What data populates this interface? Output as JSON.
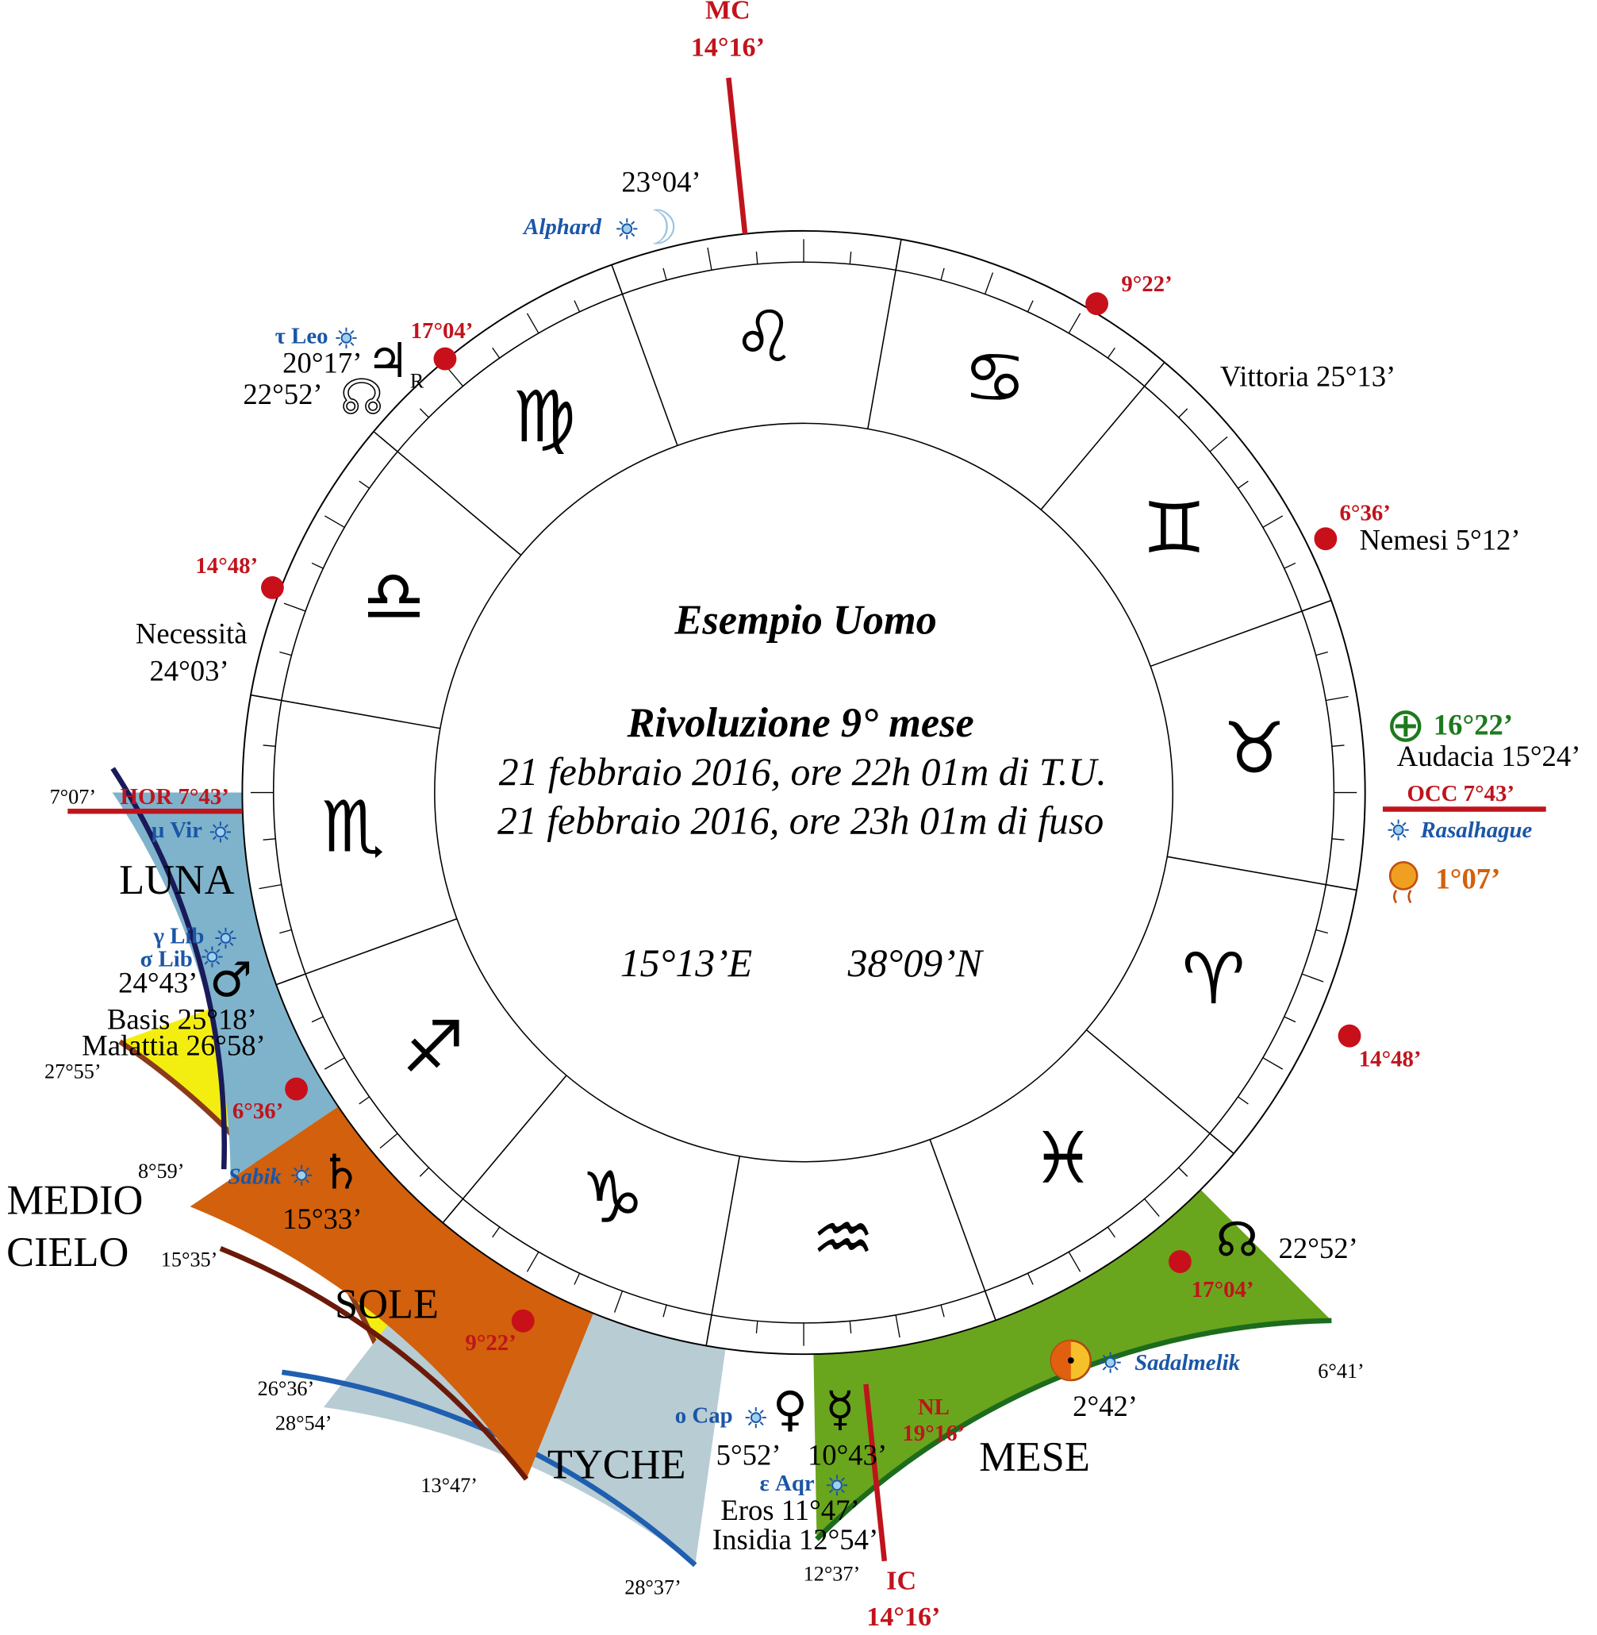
{
  "title": "Esempio Uomo",
  "subtitle": "Rivoluzione 9° mese",
  "lines": [
    "21 febbraio 2016, ore 22h 01m di T.U.",
    "21 febbraio 2016, ore 23h 01m di fuso"
  ],
  "coordinates": [
    "15°13’E",
    "38°09’N"
  ],
  "signs": [
    "♌",
    "♋",
    "♊",
    "♉",
    "♈",
    "♓",
    "♒",
    "♑",
    "♐",
    "♏",
    "♎",
    "♍"
  ],
  "glyphs": [
    "☽",
    "♃",
    "☊",
    "♂",
    "♄",
    "♀",
    "☿",
    "☊",
    "⊕"
  ],
  "labels": [
    "MC",
    "14°16’",
    "23°04’",
    "Alphard",
    "9°22’",
    "τ Leo",
    "17°04’",
    "20°17’",
    "22°52’",
    "R",
    "Vittoria 25°13’",
    "6°36’",
    "Nemesi 5°12’",
    "14°48’",
    "Necessità",
    "24°03’",
    "16°22’",
    "Audacia 15°24’",
    "7°07’",
    "HOR 7°43’",
    "OCC 7°43’",
    "μ Vir",
    "Rasalhague",
    "LUNA",
    "1°07’",
    "γ Lib",
    "σ Lib",
    "24°43’",
    "Basis 25°18’",
    "Malattia 26°58’",
    "14°48’",
    "27°55’",
    "6°36’",
    "8°59’",
    "Sabik",
    "MEDIO",
    "15°33’",
    "CIELO",
    "22°52’",
    "15°35’",
    "17°04’",
    "SOLE",
    "9°22’",
    "6°41’",
    "Sadalmelik",
    "26°36’",
    "NL",
    "ο Cap",
    "2°42’",
    "28°54’",
    "19°16’",
    "5°52’",
    "10°43’",
    "TYCHE",
    "MESE",
    "13°47’",
    "ε Aqr",
    "Eros 11°47’",
    "Insidia 12°54’",
    "12°37’",
    "IC",
    "28°37’",
    "14°16’"
  ]
}
